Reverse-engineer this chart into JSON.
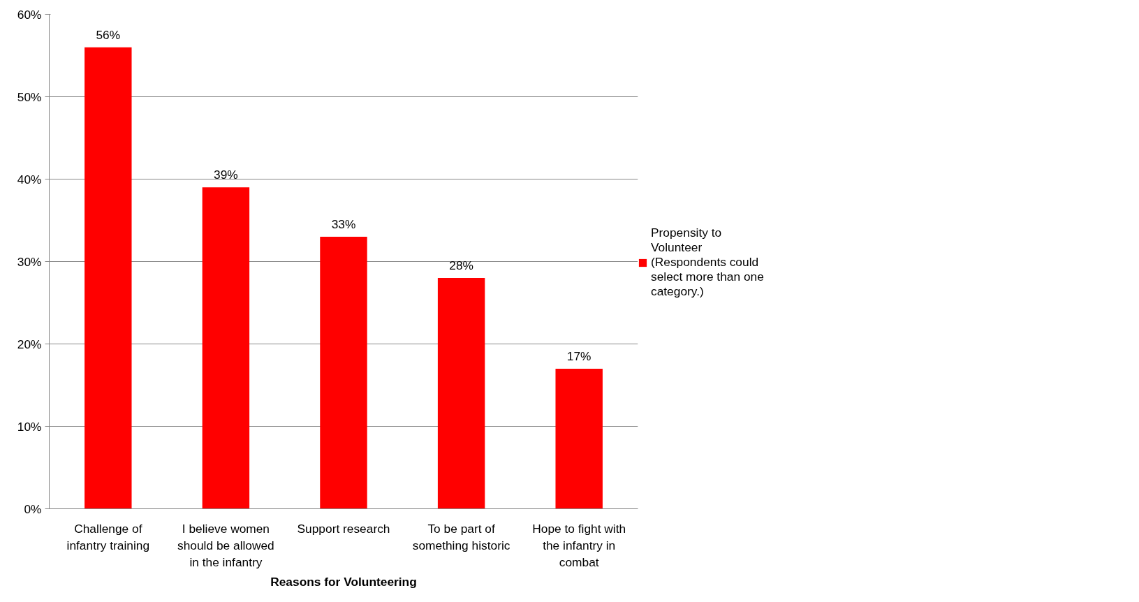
{
  "chart_data": {
    "type": "bar",
    "xlabel": "Reasons for Volunteering",
    "categories": [
      "Challenge of infantry training",
      "I believe women should be allowed in the infantry",
      "Support research",
      "To be part of something historic",
      "Hope to fight with the infantry in combat"
    ],
    "series": [
      {
        "name": "Propensity to Volunteer (Respondents could select more than one category.)",
        "color": "#ff0000",
        "values": [
          56,
          39,
          33,
          28,
          17
        ],
        "value_labels": [
          "56%",
          "39%",
          "33%",
          "28%",
          "17%"
        ]
      }
    ],
    "ylim": [
      0,
      60
    ],
    "yticks": [
      {
        "value": 0,
        "label": "0%"
      },
      {
        "value": 10,
        "label": "10%"
      },
      {
        "value": 20,
        "label": "20%"
      },
      {
        "value": 30,
        "label": "30%"
      },
      {
        "value": 40,
        "label": "40%"
      },
      {
        "value": 50,
        "label": "50%"
      },
      {
        "value": 60,
        "label": "60%"
      }
    ],
    "grid": "y",
    "legend": "right"
  }
}
